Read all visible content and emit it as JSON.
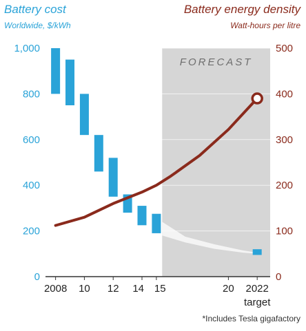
{
  "chart_data": {
    "type": "bar-range+line",
    "left_title": "Battery cost",
    "left_subtitle": "Worldwide, $/kWh",
    "right_title": "Battery energy density",
    "right_subtitle": "Watt-hours per litre",
    "forecast_label": "FORECAST",
    "footnote": "*Includes Tesla gigafactory",
    "left_axis": {
      "ylim": [
        0,
        1000
      ],
      "ticks": [
        "0",
        "200",
        "400",
        "600",
        "800",
        "1,000"
      ],
      "color": "#2aa3d8"
    },
    "right_axis": {
      "ylim": [
        0,
        500
      ],
      "ticks": [
        "0",
        "100",
        "200",
        "300",
        "400",
        "500"
      ],
      "color": "#8a2a1c"
    },
    "x_tick_labels": [
      {
        "x": 2008,
        "label": "2008"
      },
      {
        "x": 2010,
        "label": "10"
      },
      {
        "x": 2012,
        "label": "12"
      },
      {
        "x": 2014,
        "label": "14"
      },
      {
        "x": 2015,
        "label": "15"
      },
      {
        "x": 2020,
        "label": "20"
      },
      {
        "x": 2022,
        "label": "2022"
      }
    ],
    "x_target_label": "target",
    "xlim": [
      2007.3,
      2022.9
    ],
    "forecast_start": 2015.4,
    "cost_ranges": [
      {
        "x": 2008,
        "low": 800,
        "high": 1000
      },
      {
        "x": 2009,
        "low": 750,
        "high": 950
      },
      {
        "x": 2010,
        "low": 620,
        "high": 800
      },
      {
        "x": 2011,
        "low": 460,
        "high": 620
      },
      {
        "x": 2012,
        "low": 350,
        "high": 520
      },
      {
        "x": 2013,
        "low": 280,
        "high": 360
      },
      {
        "x": 2014,
        "low": 225,
        "high": 310
      },
      {
        "x": 2015,
        "low": 190,
        "high": 275
      },
      {
        "x": 2022,
        "low": 95,
        "high": 120
      }
    ],
    "forecast_band": [
      {
        "x": 2015.4,
        "low": 180,
        "high": 240
      },
      {
        "x": 2017,
        "low": 150,
        "high": 175
      },
      {
        "x": 2019,
        "low": 122,
        "high": 142
      },
      {
        "x": 2021,
        "low": 105,
        "high": 115
      },
      {
        "x": 2022,
        "low": 100,
        "high": 105
      }
    ],
    "energy_density": [
      {
        "x": 2008,
        "y": 112
      },
      {
        "x": 2010,
        "y": 130
      },
      {
        "x": 2012,
        "y": 160
      },
      {
        "x": 2014,
        "y": 185
      },
      {
        "x": 2015,
        "y": 200
      },
      {
        "x": 2016,
        "y": 220
      },
      {
        "x": 2018,
        "y": 265
      },
      {
        "x": 2020,
        "y": 322
      },
      {
        "x": 2022,
        "y": 390
      }
    ],
    "colors": {
      "bar": "#2aa3d8",
      "line": "#8a2a1c",
      "forecast_bg": "#d6d6d6",
      "axis": "#333333"
    }
  }
}
